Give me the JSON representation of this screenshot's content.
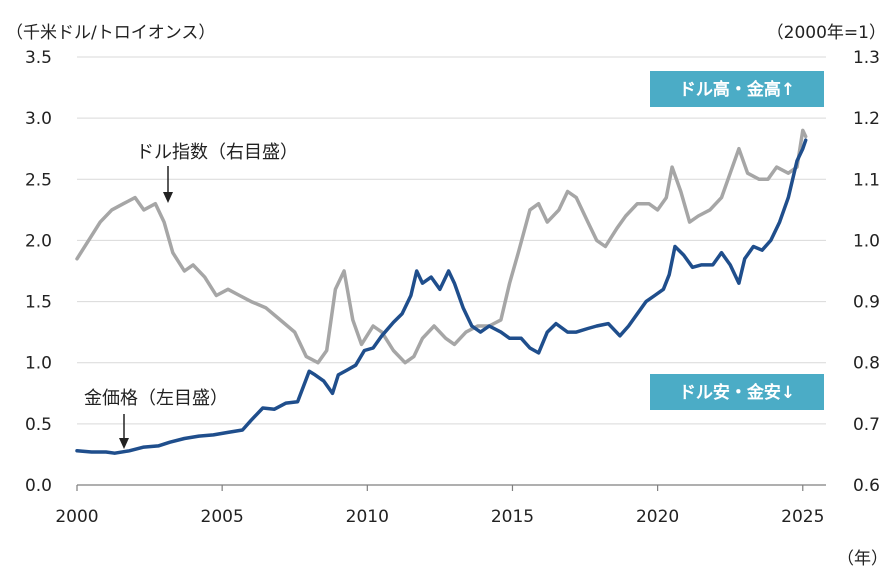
{
  "chart_data": {
    "type": "line",
    "title": "",
    "left_axis_unit": "（千米ドル/トロイオンス）",
    "right_axis_unit": "（2000年=1）",
    "x_unit": "（年）",
    "xlim": [
      2000,
      2025.8
    ],
    "ylim_left": [
      0,
      3.5
    ],
    "ylim_right": [
      0.6,
      1.3
    ],
    "x_ticks": [
      "2000",
      "2005",
      "2010",
      "2015",
      "2020",
      "2025"
    ],
    "left_ticks": [
      "0.0",
      "0.5",
      "1.0",
      "1.5",
      "2.0",
      "2.5",
      "3.0",
      "3.5"
    ],
    "right_ticks": [
      "0.6",
      "0.7",
      "0.8",
      "0.9",
      "1.0",
      "1.1",
      "1.2",
      "1.3"
    ],
    "grid": true,
    "series": [
      {
        "name": "金価格",
        "axis": "left",
        "color": "#1f4e8c",
        "x": [
          2000.0,
          2000.5,
          2001.0,
          2001.3,
          2001.8,
          2002.3,
          2002.8,
          2003.2,
          2003.7,
          2004.2,
          2004.7,
          2005.2,
          2005.7,
          2006.0,
          2006.4,
          2006.8,
          2007.2,
          2007.6,
          2008.0,
          2008.2,
          2008.5,
          2008.8,
          2009.0,
          2009.3,
          2009.6,
          2009.9,
          2010.2,
          2010.5,
          2010.9,
          2011.2,
          2011.5,
          2011.7,
          2011.9,
          2012.2,
          2012.5,
          2012.8,
          2013.0,
          2013.3,
          2013.6,
          2013.9,
          2014.2,
          2014.6,
          2014.9,
          2015.3,
          2015.6,
          2015.9,
          2016.2,
          2016.5,
          2016.9,
          2017.2,
          2017.6,
          2017.9,
          2018.3,
          2018.7,
          2019.0,
          2019.3,
          2019.6,
          2019.9,
          2020.2,
          2020.4,
          2020.6,
          2020.9,
          2021.2,
          2021.5,
          2021.9,
          2022.2,
          2022.5,
          2022.8,
          2023.0,
          2023.3,
          2023.6,
          2023.9,
          2024.2,
          2024.5,
          2024.8,
          2025.0,
          2025.1
        ],
        "values": [
          0.28,
          0.27,
          0.27,
          0.26,
          0.28,
          0.31,
          0.32,
          0.35,
          0.38,
          0.4,
          0.41,
          0.43,
          0.45,
          0.53,
          0.63,
          0.62,
          0.67,
          0.68,
          0.93,
          0.9,
          0.85,
          0.75,
          0.9,
          0.94,
          0.98,
          1.1,
          1.12,
          1.22,
          1.33,
          1.4,
          1.55,
          1.75,
          1.65,
          1.7,
          1.6,
          1.75,
          1.65,
          1.45,
          1.3,
          1.25,
          1.3,
          1.25,
          1.2,
          1.2,
          1.12,
          1.08,
          1.25,
          1.32,
          1.25,
          1.25,
          1.28,
          1.3,
          1.32,
          1.22,
          1.3,
          1.4,
          1.5,
          1.55,
          1.6,
          1.72,
          1.95,
          1.88,
          1.78,
          1.8,
          1.8,
          1.9,
          1.8,
          1.65,
          1.85,
          1.95,
          1.92,
          2.0,
          2.15,
          2.35,
          2.65,
          2.75,
          2.82
        ]
      },
      {
        "name": "ドル指数",
        "axis": "right",
        "color": "#a6a6a6",
        "x": [
          2000.0,
          2000.4,
          2000.8,
          2001.2,
          2001.6,
          2002.0,
          2002.3,
          2002.7,
          2003.0,
          2003.3,
          2003.7,
          2004.0,
          2004.4,
          2004.8,
          2005.2,
          2005.6,
          2006.0,
          2006.5,
          2007.0,
          2007.5,
          2007.9,
          2008.3,
          2008.6,
          2008.9,
          2009.2,
          2009.5,
          2009.8,
          2010.2,
          2010.5,
          2010.9,
          2011.3,
          2011.6,
          2011.9,
          2012.3,
          2012.7,
          2013.0,
          2013.4,
          2013.8,
          2014.2,
          2014.6,
          2014.9,
          2015.2,
          2015.6,
          2015.9,
          2016.2,
          2016.6,
          2016.9,
          2017.2,
          2017.6,
          2017.9,
          2018.2,
          2018.6,
          2018.9,
          2019.3,
          2019.7,
          2020.0,
          2020.3,
          2020.5,
          2020.8,
          2021.1,
          2021.4,
          2021.8,
          2022.2,
          2022.5,
          2022.8,
          2023.1,
          2023.5,
          2023.8,
          2024.1,
          2024.5,
          2024.8,
          2025.0,
          2025.1
        ],
        "values": [
          0.97,
          1.0,
          1.03,
          1.05,
          1.06,
          1.07,
          1.05,
          1.06,
          1.03,
          0.98,
          0.95,
          0.96,
          0.94,
          0.91,
          0.92,
          0.91,
          0.9,
          0.89,
          0.87,
          0.85,
          0.81,
          0.8,
          0.82,
          0.92,
          0.95,
          0.87,
          0.83,
          0.86,
          0.85,
          0.82,
          0.8,
          0.81,
          0.84,
          0.86,
          0.84,
          0.83,
          0.85,
          0.86,
          0.86,
          0.87,
          0.93,
          0.98,
          1.05,
          1.06,
          1.03,
          1.05,
          1.08,
          1.07,
          1.03,
          1.0,
          0.99,
          1.02,
          1.04,
          1.06,
          1.06,
          1.05,
          1.07,
          1.12,
          1.08,
          1.03,
          1.04,
          1.05,
          1.07,
          1.11,
          1.15,
          1.11,
          1.1,
          1.1,
          1.12,
          1.11,
          1.12,
          1.18,
          1.17
        ]
      }
    ],
    "annotations": {
      "dollar_index_label": "ドル指数（右目盛）",
      "gold_price_label": "金価格（左目盛）",
      "badge_top": "ドル高・金高↑",
      "badge_bottom": "ドル安・金安↓"
    },
    "badge_color": "#4bacc6"
  }
}
